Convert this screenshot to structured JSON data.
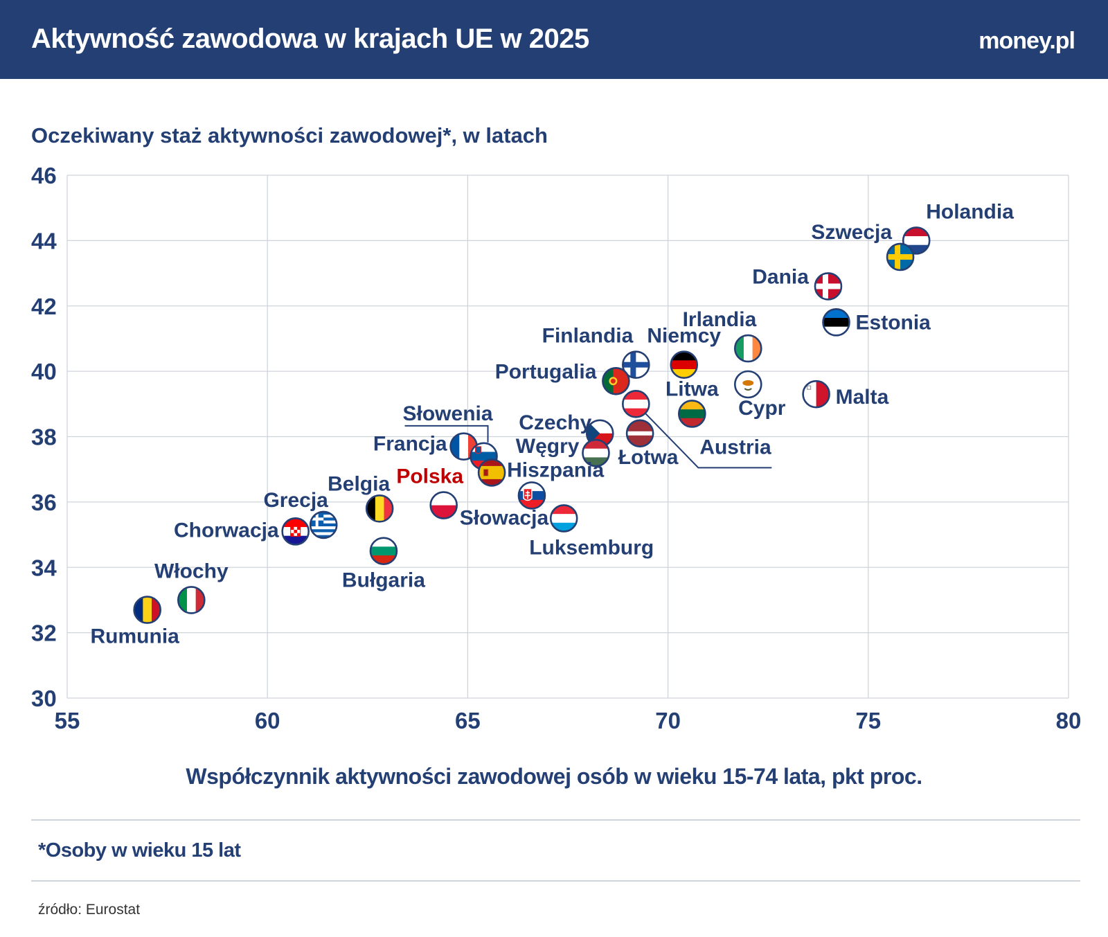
{
  "header": {
    "title": "Aktywność zawodowa w krajach UE w 2025",
    "brand": "money.pl"
  },
  "footer": {
    "note": "*Osoby w wieku 15 lat",
    "source": "źródło: Eurostat"
  },
  "colors": {
    "header_bg": "#243f73",
    "text": "#243f73",
    "highlight": "#c00000",
    "grid": "#cfd4dc"
  },
  "chart_data": {
    "type": "scatter",
    "ylabel": "Oczekiwany staż aktywności zawodowej*, w latach",
    "xlabel": "Współczynnik aktywności zawodowej osób w wieku 15-74 lata, pkt proc.",
    "xlim": [
      55,
      80
    ],
    "ylim": [
      30,
      46
    ],
    "xticks": [
      55,
      60,
      65,
      70,
      75,
      80
    ],
    "yticks": [
      30,
      32,
      34,
      36,
      38,
      40,
      42,
      44,
      46
    ],
    "grid": true,
    "points": [
      {
        "name": "Holandia",
        "x": 76.2,
        "y": 44.0,
        "flag": "flag-netherlands",
        "highlight": false
      },
      {
        "name": "Szwecja",
        "x": 75.8,
        "y": 43.5,
        "flag": "flag-sweden",
        "highlight": false
      },
      {
        "name": "Dania",
        "x": 74.0,
        "y": 42.6,
        "flag": "flag-denmark",
        "highlight": false
      },
      {
        "name": "Estonia",
        "x": 74.2,
        "y": 41.5,
        "flag": "flag-estonia",
        "highlight": false
      },
      {
        "name": "Irlandia",
        "x": 72.0,
        "y": 40.7,
        "flag": "flag-ireland",
        "highlight": false
      },
      {
        "name": "Niemcy",
        "x": 70.4,
        "y": 40.2,
        "flag": "flag-germany",
        "highlight": false
      },
      {
        "name": "Finlandia",
        "x": 69.2,
        "y": 40.2,
        "flag": "flag-finland",
        "highlight": false
      },
      {
        "name": "Portugalia",
        "x": 68.7,
        "y": 39.7,
        "flag": "flag-portugal",
        "highlight": false
      },
      {
        "name": "Cypr",
        "x": 72.0,
        "y": 39.6,
        "flag": "flag-cyprus",
        "highlight": false
      },
      {
        "name": "Malta",
        "x": 73.7,
        "y": 39.3,
        "flag": "flag-malta",
        "highlight": false
      },
      {
        "name": "Austria",
        "x": 69.2,
        "y": 39.0,
        "flag": "flag-austria",
        "highlight": false
      },
      {
        "name": "Litwa",
        "x": 70.6,
        "y": 38.7,
        "flag": "flag-lithuania",
        "highlight": false
      },
      {
        "name": "Łotwa",
        "x": 69.3,
        "y": 38.1,
        "flag": "flag-latvia",
        "highlight": false
      },
      {
        "name": "Czechy",
        "x": 68.3,
        "y": 38.1,
        "flag": "flag-czechia",
        "highlight": false
      },
      {
        "name": "Węgry",
        "x": 68.2,
        "y": 37.5,
        "flag": "flag-hungary",
        "highlight": false
      },
      {
        "name": "Francja",
        "x": 64.9,
        "y": 37.7,
        "flag": "flag-france",
        "highlight": false
      },
      {
        "name": "Słowenia",
        "x": 65.4,
        "y": 37.4,
        "flag": "flag-slovenia",
        "highlight": false
      },
      {
        "name": "Hiszpania",
        "x": 65.6,
        "y": 36.9,
        "flag": "flag-spain",
        "highlight": false
      },
      {
        "name": "Polska",
        "x": 64.4,
        "y": 35.9,
        "flag": "flag-poland",
        "highlight": true
      },
      {
        "name": "Słowacja",
        "x": 66.6,
        "y": 36.2,
        "flag": "flag-slovakia",
        "highlight": false
      },
      {
        "name": "Luksemburg",
        "x": 67.4,
        "y": 35.5,
        "flag": "flag-luxembourg",
        "highlight": false
      },
      {
        "name": "Belgia",
        "x": 62.8,
        "y": 35.8,
        "flag": "flag-belgium",
        "highlight": false
      },
      {
        "name": "Bułgaria",
        "x": 62.9,
        "y": 34.5,
        "flag": "flag-bulgaria",
        "highlight": false
      },
      {
        "name": "Grecja",
        "x": 61.4,
        "y": 35.3,
        "flag": "flag-greece",
        "highlight": false
      },
      {
        "name": "Chorwacja",
        "x": 60.7,
        "y": 35.1,
        "flag": "flag-croatia",
        "highlight": false
      },
      {
        "name": "Włochy",
        "x": 58.1,
        "y": 33.0,
        "flag": "flag-italy",
        "highlight": false
      },
      {
        "name": "Rumunia",
        "x": 57.0,
        "y": 32.7,
        "flag": "flag-romania",
        "highlight": false
      }
    ]
  }
}
